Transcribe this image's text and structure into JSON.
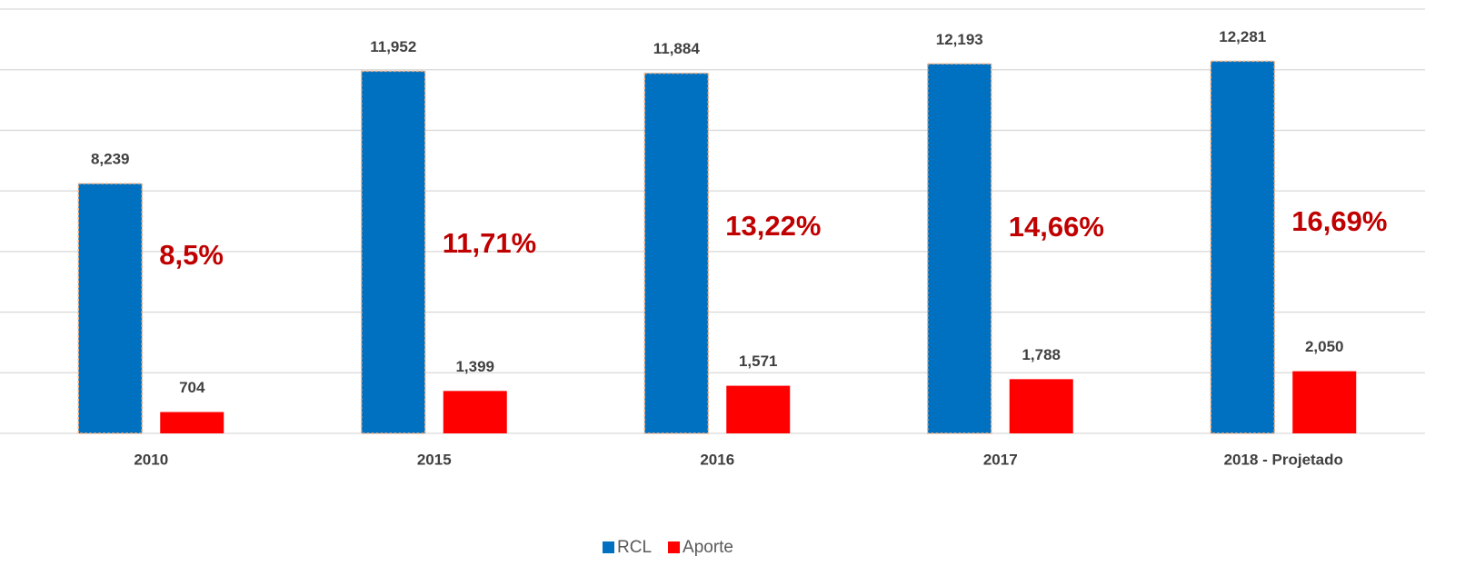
{
  "chart_data": {
    "type": "bar",
    "categories": [
      "2010",
      "2015",
      "2016",
      "2017",
      "2018 - Projetado"
    ],
    "series": [
      {
        "name": "RCL",
        "color": "#0070c0",
        "values": [
          8239,
          11952,
          11884,
          12193,
          12281
        ],
        "value_labels": [
          "8,239",
          "11,952",
          "11,884",
          "12,193",
          "12,281"
        ]
      },
      {
        "name": "Aporte",
        "color": "#ff0000",
        "values": [
          704,
          1399,
          1571,
          1788,
          2050
        ],
        "value_labels": [
          "704",
          "1,399",
          "1,571",
          "1,788",
          "2,050"
        ]
      }
    ],
    "annotations": [
      "8,5%",
      "11,71%",
      "13,22%",
      "14,66%",
      "16,69%"
    ],
    "annotation_color": "#c00000",
    "ylim": [
      0,
      14000
    ],
    "yticks": [
      0,
      2000,
      4000,
      6000,
      8000,
      10000,
      12000,
      14000
    ],
    "grid": true,
    "legend": "bottom"
  }
}
